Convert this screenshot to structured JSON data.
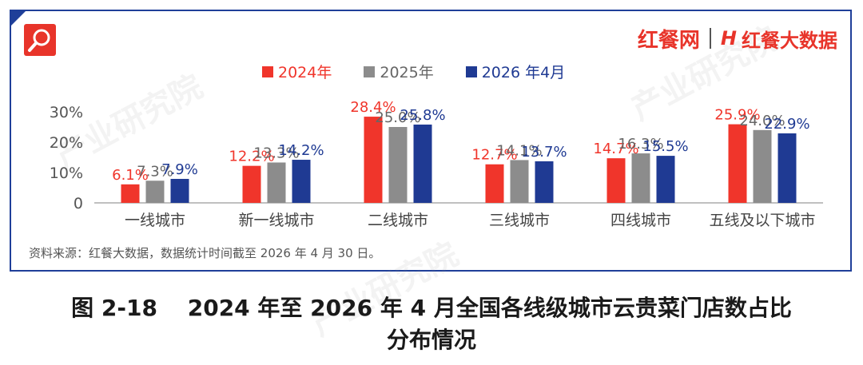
{
  "header": {
    "brand": "红餐网",
    "brand_sub": "红餐大数据",
    "brand_mark": "H"
  },
  "watermark": "产业研究院",
  "colors": {
    "s2024": "#f0352b",
    "s2025": "#8c8c8c",
    "s2026": "#1f3a93",
    "frame": "#1f3f99"
  },
  "chart_data": {
    "type": "bar",
    "categories": [
      "一线城市",
      "新一线城市",
      "二线城市",
      "三线城市",
      "四线城市",
      "五线及以下城市"
    ],
    "series": [
      {
        "name": "2024年",
        "values": [
          6.1,
          12.2,
          28.4,
          12.7,
          14.7,
          25.9
        ],
        "labels": [
          "6.1%",
          "12.2%",
          "28.4%",
          "12.7%",
          "14.7%",
          "25.9%"
        ]
      },
      {
        "name": "2025年",
        "values": [
          7.3,
          13.3,
          25.0,
          14.1,
          16.3,
          24.0
        ],
        "labels": [
          "7.3%",
          "13.3%",
          "25.0%",
          "14.1%",
          "16.3%",
          "24.0%"
        ]
      },
      {
        "name": "2026 年4月",
        "values": [
          7.9,
          14.2,
          25.8,
          13.7,
          15.5,
          22.9
        ],
        "labels": [
          "7.9%",
          "14.2%",
          "25.8%",
          "13.7%",
          "15.5%",
          "22.9%"
        ]
      }
    ],
    "yticks": [
      "0",
      "10%",
      "20%",
      "30%"
    ],
    "ylim": [
      0,
      30
    ],
    "legend_position": "top"
  },
  "source": "资料来源：红餐大数据，数据统计时间截至 2026 年 4 月 30 日。",
  "caption": {
    "line1": "图 2-18　 2024 年至 2026 年 4 月全国各线级城市云贵菜门店数占比",
    "line2": "分布情况"
  }
}
